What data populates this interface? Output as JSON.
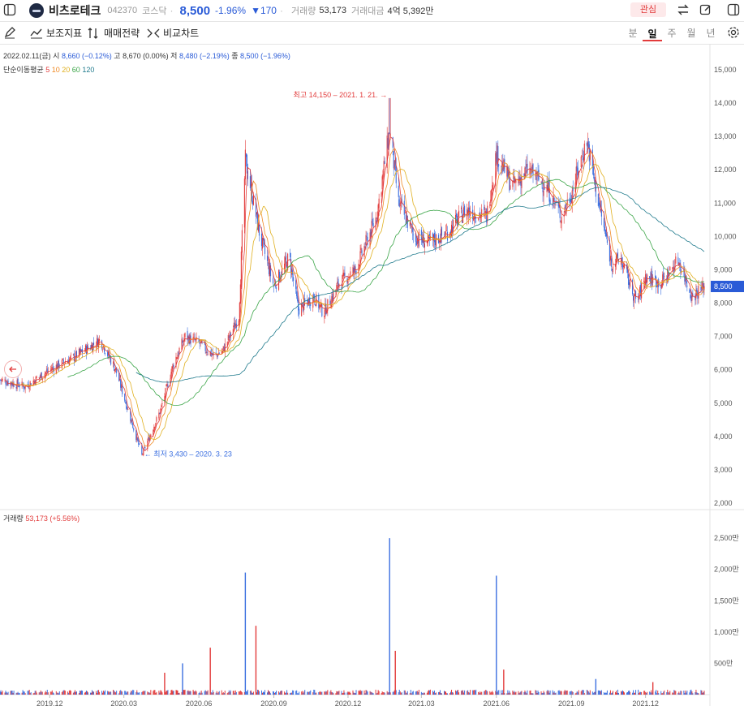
{
  "stock": {
    "name": "비츠로테크",
    "code": "042370",
    "market": "코스닥",
    "price": "8,500",
    "change_pct": "-1.96%",
    "change_abs": "▼170",
    "volume_label": "거래량",
    "volume": "53,173",
    "amount_label": "거래대금",
    "amount": "4억 5,392만",
    "fav_label": "관심"
  },
  "toolbar": {
    "indicator_label": "보조지표",
    "strategy_label": "매매전략",
    "compare_label": "비교차트",
    "periods": [
      "분",
      "일",
      "주",
      "월",
      "년"
    ],
    "active_period": "일"
  },
  "ohlc": {
    "date": "2022.02.11(금)",
    "open_label": "시",
    "open": "8,660 (−0.12%)",
    "high_label": "고",
    "high": "8,670 (0.00%)",
    "low_label": "저",
    "low": "8,480 (−2.19%)",
    "close_label": "종",
    "close": "8,500 (−1.96%)"
  },
  "ma": {
    "title": "단순이동평균",
    "p5": "5",
    "p10": "10",
    "p20": "20",
    "p60": "60",
    "p120": "120"
  },
  "volume_legend": {
    "label": "거래량",
    "value": "53,173 (+5.56%)"
  },
  "colors": {
    "up": "#e23b3b",
    "down": "#3b6fe0",
    "ma5": "#e23b3b",
    "ma10": "#f08a24",
    "ma20": "#e0b020",
    "ma60": "#3aa547",
    "ma120": "#1f7a8c"
  },
  "chart_data": [
    {
      "type": "candlestick",
      "price_axis_ticks": [
        "15,000",
        "14,000",
        "13,000",
        "12,000",
        "11,000",
        "10,000",
        "9,000",
        "8,000",
        "7,000",
        "6,000",
        "5,000",
        "4,000",
        "3,000",
        "2,000"
      ],
      "ylim": [
        2000,
        15000
      ],
      "x_ticks": [
        "2019.12",
        "2020.03",
        "2020.06",
        "2020.09",
        "2020.12",
        "2021.03",
        "2021.06",
        "2021.09",
        "2021.12"
      ],
      "current_price_tag": "8,500",
      "annotations": [
        {
          "text": "최고 14,150 ← 2021. 1. 21. →",
          "display": "최고 14,150 – 2021. 1. 21. →",
          "value": 14150,
          "date": "2021-01-21"
        },
        {
          "text": "← 최저 3,430 – 2020. 3. 23",
          "value": 3430,
          "date": "2020-03-23"
        }
      ],
      "close_series": {
        "x": [
          "2019-10-01",
          "2019-11-01",
          "2019-12-01",
          "2020-01-01",
          "2020-02-01",
          "2020-02-20",
          "2020-03-23",
          "2020-04-15",
          "2020-05-01",
          "2020-05-15",
          "2020-06-01",
          "2020-06-20",
          "2020-07-01",
          "2020-07-20",
          "2020-07-28",
          "2020-08-15",
          "2020-09-01",
          "2020-09-20",
          "2020-10-01",
          "2020-10-20",
          "2020-11-01",
          "2020-11-20",
          "2020-12-10",
          "2021-01-05",
          "2021-01-21",
          "2021-02-01",
          "2021-02-20",
          "2021-03-10",
          "2021-04-01",
          "2021-04-25",
          "2021-05-20",
          "2021-06-01",
          "2021-06-20",
          "2021-07-10",
          "2021-08-01",
          "2021-08-20",
          "2021-09-01",
          "2021-09-20",
          "2021-10-01",
          "2021-10-20",
          "2021-11-01",
          "2021-11-20",
          "2021-12-01",
          "2021-12-20",
          "2022-01-10",
          "2022-01-27",
          "2022-02-11"
        ],
        "y": [
          5700,
          5500,
          6000,
          6400,
          6900,
          6000,
          3430,
          4800,
          6200,
          7000,
          6800,
          6400,
          6600,
          7600,
          12300,
          10000,
          8500,
          9400,
          7800,
          8200,
          7700,
          8600,
          9000,
          10600,
          13200,
          11000,
          10000,
          9800,
          10100,
          10800,
          10600,
          12500,
          11500,
          12000,
          11500,
          10600,
          11300,
          12900,
          11400,
          9200,
          9300,
          8000,
          8800,
          8600,
          9300,
          8200,
          8500
        ]
      },
      "series": [
        {
          "name": "5",
          "type": "ma"
        },
        {
          "name": "10",
          "type": "ma"
        },
        {
          "name": "20",
          "type": "ma"
        },
        {
          "name": "60",
          "type": "ma"
        },
        {
          "name": "120",
          "type": "ma"
        }
      ]
    },
    {
      "type": "bar",
      "title": "거래량",
      "y_ticks": [
        "2,500만",
        "2,000만",
        "1,500만",
        "1,000만",
        "500만"
      ],
      "ylim": [
        0,
        2800
      ],
      "unit": "만",
      "spikes": {
        "x": [
          "2020-04-20",
          "2020-05-12",
          "2020-06-15",
          "2020-07-28",
          "2020-08-10",
          "2021-01-21",
          "2021-01-28",
          "2021-06-01",
          "2021-06-10",
          "2021-10-01",
          "2021-12-10"
        ],
        "values": [
          350,
          500,
          750,
          1950,
          1100,
          2500,
          700,
          1900,
          400,
          250,
          200
        ]
      }
    }
  ]
}
